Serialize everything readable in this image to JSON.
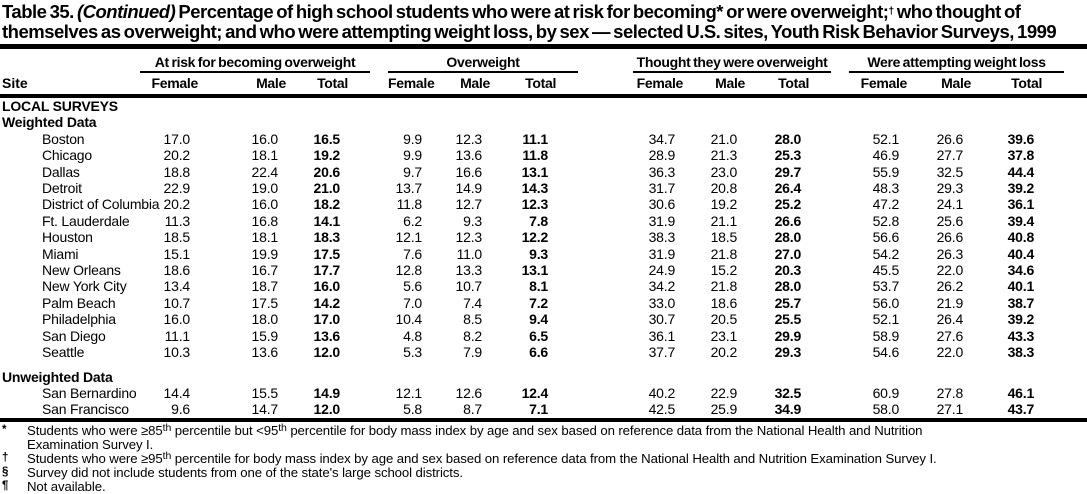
{
  "title": {
    "label": "Table 35.",
    "continued": "(Continued)",
    "part1": "Percentage of high school students who were at risk for becoming",
    "marker1": "*",
    "part2": " or were overweight;",
    "marker2": "†",
    "part3a": " who thought of",
    "part3b": "themselves as overweight; and who were attempting weight loss, by sex — selected U.S. sites, Youth Risk Behavior Surveys, 1999"
  },
  "table": {
    "site_label": "Site",
    "groups": [
      {
        "label": "At risk for becoming overweight",
        "sub": [
          "Female",
          "Male",
          "Total"
        ]
      },
      {
        "label": "Overweight",
        "sub": [
          "Female",
          "Male",
          "Total"
        ]
      },
      {
        "label": "Thought they were overweight",
        "sub": [
          "Female",
          "Male",
          "Total"
        ]
      },
      {
        "label": "Were attempting weight loss",
        "sub": [
          "Female",
          "Male",
          "Total"
        ]
      }
    ],
    "sections": [
      {
        "headings": [
          "LOCAL SURVEYS",
          "Weighted Data"
        ],
        "rows": [
          {
            "site": "Boston",
            "values": [
              "17.0",
              "16.0",
              "16.5",
              "9.9",
              "12.3",
              "11.1",
              "34.7",
              "21.0",
              "28.0",
              "52.1",
              "26.6",
              "39.6"
            ]
          },
          {
            "site": "Chicago",
            "values": [
              "20.2",
              "18.1",
              "19.2",
              "9.9",
              "13.6",
              "11.8",
              "28.9",
              "21.3",
              "25.3",
              "46.9",
              "27.7",
              "37.8"
            ]
          },
          {
            "site": "Dallas",
            "values": [
              "18.8",
              "22.4",
              "20.6",
              "9.7",
              "16.6",
              "13.1",
              "36.3",
              "23.0",
              "29.7",
              "55.9",
              "32.5",
              "44.4"
            ]
          },
          {
            "site": "Detroit",
            "values": [
              "22.9",
              "19.0",
              "21.0",
              "13.7",
              "14.9",
              "14.3",
              "31.7",
              "20.8",
              "26.4",
              "48.3",
              "29.3",
              "39.2"
            ]
          },
          {
            "site": "District of Columbia",
            "values": [
              "20.2",
              "16.0",
              "18.2",
              "11.8",
              "12.7",
              "12.3",
              "30.6",
              "19.2",
              "25.2",
              "47.2",
              "24.1",
              "36.1"
            ]
          },
          {
            "site": "Ft. Lauderdale",
            "values": [
              "11.3",
              "16.8",
              "14.1",
              "6.2",
              "9.3",
              "7.8",
              "31.9",
              "21.1",
              "26.6",
              "52.8",
              "25.6",
              "39.4"
            ]
          },
          {
            "site": "Houston",
            "values": [
              "18.5",
              "18.1",
              "18.3",
              "12.1",
              "12.3",
              "12.2",
              "38.3",
              "18.5",
              "28.0",
              "56.6",
              "26.6",
              "40.8"
            ]
          },
          {
            "site": "Miami",
            "values": [
              "15.1",
              "19.9",
              "17.5",
              "7.6",
              "11.0",
              "9.3",
              "31.9",
              "21.8",
              "27.0",
              "54.2",
              "26.3",
              "40.4"
            ]
          },
          {
            "site": "New Orleans",
            "values": [
              "18.6",
              "16.7",
              "17.7",
              "12.8",
              "13.3",
              "13.1",
              "24.9",
              "15.2",
              "20.3",
              "45.5",
              "22.0",
              "34.6"
            ]
          },
          {
            "site": "New York City",
            "values": [
              "13.4",
              "18.7",
              "16.0",
              "5.6",
              "10.7",
              "8.1",
              "34.2",
              "21.8",
              "28.0",
              "53.7",
              "26.2",
              "40.1"
            ]
          },
          {
            "site": "Palm Beach",
            "values": [
              "10.7",
              "17.5",
              "14.2",
              "7.0",
              "7.4",
              "7.2",
              "33.0",
              "18.6",
              "25.7",
              "56.0",
              "21.9",
              "38.7"
            ]
          },
          {
            "site": "Philadelphia",
            "values": [
              "16.0",
              "18.0",
              "17.0",
              "10.4",
              "8.5",
              "9.4",
              "30.7",
              "20.5",
              "25.5",
              "52.1",
              "26.4",
              "39.2"
            ]
          },
          {
            "site": "San Diego",
            "values": [
              "11.1",
              "15.9",
              "13.6",
              "4.8",
              "8.2",
              "6.5",
              "36.1",
              "23.1",
              "29.9",
              "58.9",
              "27.6",
              "43.3"
            ]
          },
          {
            "site": "Seattle",
            "values": [
              "10.3",
              "13.6",
              "12.0",
              "5.3",
              "7.9",
              "6.6",
              "37.7",
              "20.2",
              "29.3",
              "54.6",
              "22.0",
              "38.3"
            ]
          }
        ]
      },
      {
        "headings": [
          "Unweighted Data"
        ],
        "rows": [
          {
            "site": "San Bernardino",
            "values": [
              "14.4",
              "15.5",
              "14.9",
              "12.1",
              "12.6",
              "12.4",
              "40.2",
              "22.9",
              "32.5",
              "60.9",
              "27.8",
              "46.1"
            ]
          },
          {
            "site": "San Francisco",
            "values": [
              "9.6",
              "14.7",
              "12.0",
              "5.8",
              "8.7",
              "7.1",
              "42.5",
              "25.9",
              "34.9",
              "58.0",
              "27.1",
              "43.7"
            ]
          }
        ]
      }
    ]
  },
  "footnotes": [
    {
      "marker": "*",
      "segments": [
        {
          "t": "Students who were ≥85"
        },
        {
          "sup": "th"
        },
        {
          "t": " percentile but <95"
        },
        {
          "sup": "th"
        },
        {
          "t": " percentile for body mass index by age and sex based on reference data from the National Health and Nutrition"
        },
        {
          "br": true
        },
        {
          "t": "Examination Survey I."
        }
      ]
    },
    {
      "marker": "†",
      "segments": [
        {
          "t": "Students who were ≥95"
        },
        {
          "sup": "th"
        },
        {
          "t": " percentile for body mass index by age and sex based on reference data from the National Health and Nutrition Examination Survey I."
        }
      ]
    },
    {
      "marker": "§",
      "segments": [
        {
          "t": "Survey did not include students from one of the state's large school districts."
        }
      ]
    },
    {
      "marker": "¶",
      "segments": [
        {
          "t": "Not available."
        }
      ]
    }
  ]
}
